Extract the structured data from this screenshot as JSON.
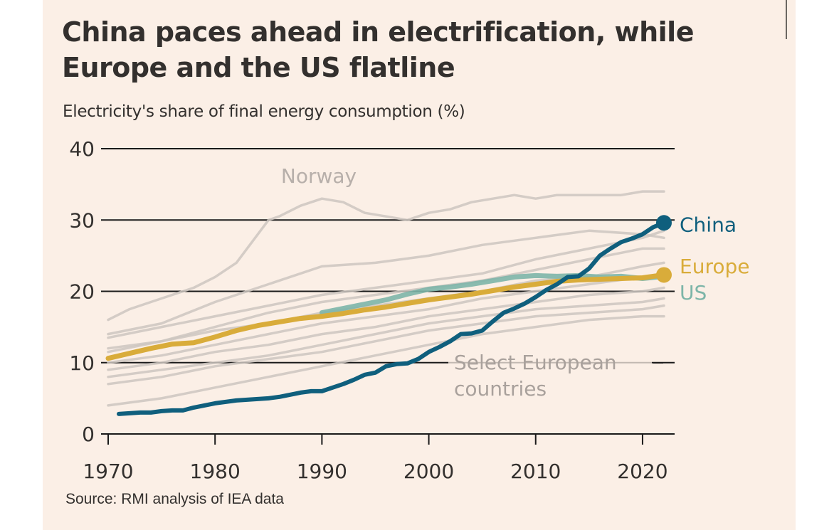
{
  "title": "China paces ahead in electrification, while Europe and the US flatline",
  "subtitle": "Electricity's share of final energy consumption (%)",
  "source": "Source: RMI analysis of IEA data",
  "colors": {
    "background": "#fbefe6",
    "china": "#0f5f7d",
    "europe": "#d9ac3a",
    "us": "#7db5a8",
    "european_countries": "#cdc5c0",
    "grid": "#1a1a1a",
    "text": "#33302e"
  },
  "chart_data": {
    "type": "line",
    "xlabel": "",
    "ylabel": "",
    "xlim": [
      1970,
      2023
    ],
    "ylim": [
      0,
      40
    ],
    "xticks": [
      1970,
      1980,
      1990,
      2000,
      2010,
      2020
    ],
    "yticks": [
      0,
      10,
      20,
      30,
      40
    ],
    "grid": true,
    "annotations": {
      "norway": "Norway",
      "select_european": [
        "Select European",
        "countries"
      ]
    },
    "series": [
      {
        "name": "China",
        "label_color": "#0f5f7d",
        "x": [
          1971,
          1972,
          1973,
          1974,
          1975,
          1976,
          1977,
          1978,
          1979,
          1980,
          1981,
          1982,
          1983,
          1984,
          1985,
          1986,
          1987,
          1988,
          1989,
          1990,
          1991,
          1992,
          1993,
          1994,
          1995,
          1996,
          1997,
          1998,
          1999,
          2000,
          2001,
          2002,
          2003,
          2004,
          2005,
          2006,
          2007,
          2008,
          2009,
          2010,
          2011,
          2012,
          2013,
          2014,
          2015,
          2016,
          2017,
          2018,
          2019,
          2020,
          2021,
          2022
        ],
        "values": [
          2.8,
          2.9,
          3.0,
          3.0,
          3.2,
          3.3,
          3.3,
          3.7,
          4.0,
          4.3,
          4.5,
          4.7,
          4.8,
          4.9,
          5.0,
          5.2,
          5.5,
          5.8,
          6.0,
          6.0,
          6.5,
          7.0,
          7.6,
          8.3,
          8.6,
          9.5,
          9.8,
          9.9,
          10.5,
          11.5,
          12.2,
          13.0,
          14.0,
          14.1,
          14.5,
          15.8,
          17.0,
          17.6,
          18.3,
          19.2,
          20.2,
          21.0,
          22.0,
          22.1,
          23.2,
          25.0,
          26.0,
          26.9,
          27.4,
          28.0,
          29.0,
          29.6
        ]
      },
      {
        "name": "Europe",
        "label_color": "#d9ac3a",
        "x": [
          1970,
          1972,
          1974,
          1976,
          1978,
          1980,
          1982,
          1984,
          1986,
          1988,
          1990,
          1992,
          1994,
          1996,
          1998,
          2000,
          2002,
          2004,
          2006,
          2008,
          2010,
          2012,
          2014,
          2016,
          2018,
          2020,
          2022
        ],
        "values": [
          10.6,
          11.3,
          12.0,
          12.6,
          12.8,
          13.6,
          14.5,
          15.2,
          15.7,
          16.2,
          16.5,
          16.9,
          17.4,
          17.8,
          18.3,
          18.8,
          19.2,
          19.6,
          20.1,
          20.6,
          21.0,
          21.4,
          21.6,
          21.7,
          21.8,
          21.9,
          22.3
        ]
      },
      {
        "name": "US",
        "label_color": "#7db5a8",
        "x": [
          1990,
          1992,
          1994,
          1996,
          1998,
          2000,
          2002,
          2004,
          2006,
          2008,
          2010,
          2012,
          2014,
          2016,
          2018,
          2020,
          2022
        ],
        "values": [
          17.0,
          17.6,
          18.2,
          18.8,
          19.6,
          20.3,
          20.6,
          21.0,
          21.5,
          22.0,
          22.2,
          22.1,
          22.2,
          22.0,
          22.1,
          21.8,
          22.1
        ]
      },
      {
        "name": "Norway",
        "x": [
          1970,
          1972,
          1974,
          1976,
          1978,
          1980,
          1982,
          1984,
          1985,
          1986,
          1988,
          1990,
          1992,
          1994,
          1996,
          1998,
          2000,
          2002,
          2004,
          2006,
          2008,
          2010,
          2012,
          2014,
          2016,
          2018,
          2020,
          2022
        ],
        "values": [
          16.0,
          17.5,
          18.5,
          19.5,
          20.5,
          22.0,
          24.0,
          28.0,
          30.0,
          30.5,
          32.0,
          33.0,
          32.5,
          31.0,
          30.5,
          30.0,
          31.0,
          31.5,
          32.5,
          33.0,
          33.5,
          33.0,
          33.5,
          33.5,
          33.5,
          33.5,
          34.0,
          34.0
        ]
      },
      {
        "name": "",
        "x": [
          1970,
          1975,
          1980,
          1985,
          1990,
          1995,
          2000,
          2005,
          2010,
          2015,
          2020,
          2022
        ],
        "values": [
          13.5,
          15.0,
          16.5,
          18.0,
          19.5,
          20.5,
          21.5,
          22.5,
          24.5,
          26.0,
          27.5,
          28.5
        ]
      },
      {
        "name": "",
        "x": [
          1970,
          1975,
          1980,
          1985,
          1990,
          1995,
          2000,
          2005,
          2010,
          2015,
          2020,
          2022
        ],
        "values": [
          14.0,
          15.5,
          18.5,
          21.0,
          23.5,
          24.0,
          25.0,
          26.5,
          27.5,
          28.5,
          28.0,
          27.5
        ]
      },
      {
        "name": "",
        "x": [
          1970,
          1975,
          1980,
          1985,
          1990,
          1995,
          2000,
          2005,
          2010,
          2015,
          2020,
          2022
        ],
        "values": [
          11.5,
          13.0,
          15.0,
          17.0,
          18.5,
          19.5,
          20.5,
          21.5,
          23.0,
          24.5,
          26.0,
          26.0
        ]
      },
      {
        "name": "",
        "x": [
          1970,
          1975,
          1980,
          1985,
          1990,
          1995,
          2000,
          2005,
          2010,
          2015,
          2020,
          2022
        ],
        "values": [
          12.0,
          13.0,
          14.5,
          15.5,
          17.0,
          18.0,
          19.0,
          20.0,
          21.5,
          22.0,
          23.5,
          24.0
        ]
      },
      {
        "name": "",
        "x": [
          1970,
          1975,
          1980,
          1985,
          1990,
          1995,
          2000,
          2005,
          2010,
          2015,
          2020,
          2022
        ],
        "values": [
          10.0,
          11.0,
          12.5,
          14.0,
          15.5,
          16.5,
          17.5,
          19.0,
          20.0,
          21.0,
          22.0,
          22.5
        ]
      },
      {
        "name": "",
        "x": [
          1970,
          1975,
          1980,
          1985,
          1990,
          1995,
          2000,
          2005,
          2010,
          2015,
          2020,
          2022
        ],
        "values": [
          9.0,
          10.0,
          11.5,
          12.5,
          14.0,
          15.0,
          16.5,
          17.5,
          18.5,
          19.5,
          20.0,
          20.5
        ]
      },
      {
        "name": "",
        "x": [
          1970,
          1975,
          1980,
          1985,
          1990,
          1995,
          2000,
          2005,
          2010,
          2015,
          2020,
          2022
        ],
        "values": [
          8.0,
          9.0,
          10.0,
          11.0,
          12.5,
          14.0,
          15.5,
          16.5,
          17.5,
          18.0,
          18.5,
          19.0
        ]
      },
      {
        "name": "",
        "x": [
          1970,
          1975,
          1980,
          1985,
          1990,
          1995,
          2000,
          2005,
          2010,
          2015,
          2020,
          2022
        ],
        "values": [
          7.0,
          8.0,
          9.5,
          10.5,
          11.5,
          13.0,
          14.5,
          15.5,
          16.5,
          17.0,
          17.5,
          18.0
        ]
      },
      {
        "name": "",
        "x": [
          1970,
          1975,
          1980,
          1985,
          1990,
          1995,
          2000,
          2005,
          2010,
          2015,
          2020,
          2022
        ],
        "values": [
          4.0,
          5.0,
          6.5,
          8.0,
          9.5,
          11.0,
          12.5,
          14.0,
          15.0,
          16.0,
          16.5,
          16.5
        ]
      }
    ]
  }
}
